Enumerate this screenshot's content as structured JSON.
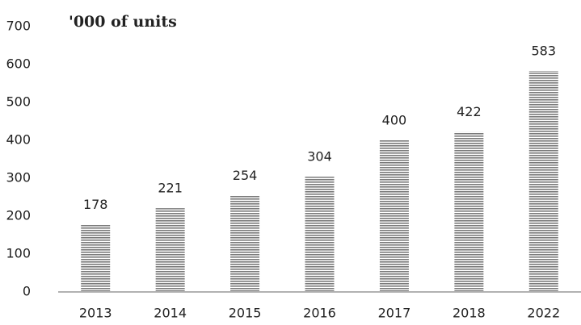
{
  "chart_data": {
    "type": "bar",
    "title": "'000 of units",
    "categories": [
      "2013",
      "2014",
      "2015",
      "2016",
      "2017",
      "2018",
      "2022"
    ],
    "values": [
      178,
      221,
      254,
      304,
      400,
      422,
      583
    ],
    "color": "#7a7a7a",
    "ylim": [
      0,
      700
    ],
    "yticks": [
      0,
      100,
      200,
      300,
      400,
      500,
      600,
      700
    ],
    "grid": false
  }
}
